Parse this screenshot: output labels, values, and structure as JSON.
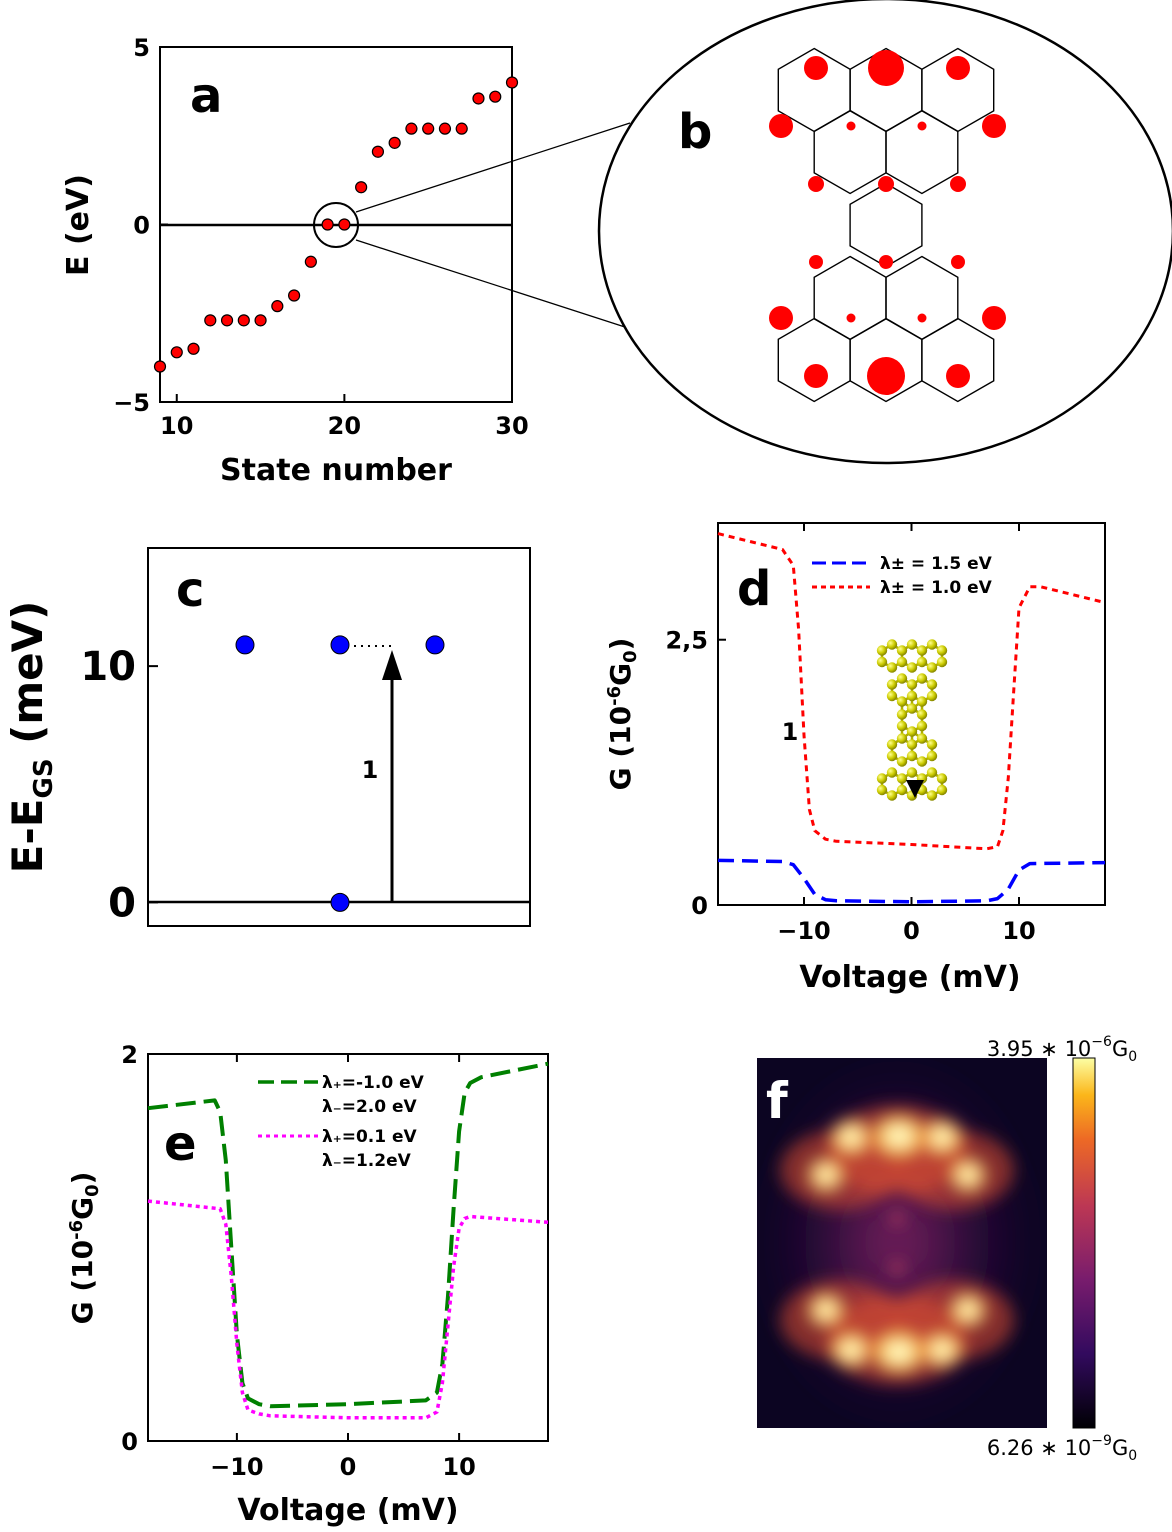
{
  "colors": {
    "red": "#ff0000",
    "blue": "#0000ff",
    "green": "#008000",
    "magenta": "#ff00ff",
    "molecule": "#d4d400",
    "map_bg": "#0c0522"
  },
  "panels": {
    "a": "a",
    "b": "b",
    "c": "c",
    "d": "d",
    "e": "e",
    "f": "f"
  },
  "chart_data": [
    {
      "panel": "a",
      "type": "scatter",
      "xlabel": "State number",
      "ylabel": "E (eV)",
      "xlim": [
        9,
        30
      ],
      "ylim": [
        -5,
        5
      ],
      "xticks": [
        "10",
        "20",
        "30"
      ],
      "yticks": [
        "5",
        "0",
        "−5"
      ],
      "x": [
        9,
        10,
        11,
        12,
        13,
        14,
        15,
        16,
        17,
        18,
        19,
        20,
        21,
        22,
        23,
        24,
        25,
        26,
        27,
        28,
        29,
        30
      ],
      "y": [
        -4.0,
        -3.6,
        -3.5,
        -2.7,
        -2.7,
        -2.7,
        -2.7,
        -2.3,
        -2.0,
        -1.05,
        0.0,
        0.0,
        1.05,
        2.05,
        2.3,
        2.7,
        2.7,
        2.7,
        2.7,
        3.55,
        3.6,
        4.0
      ]
    },
    {
      "panel": "c",
      "type": "scatter",
      "ylabel": "E-E",
      "ylabel_sub": "GS",
      "ylabel_unit": " (meV)",
      "ylim": [
        -1,
        15
      ],
      "yticks": [
        "0",
        "10"
      ],
      "x": [
        -1,
        0,
        1,
        0
      ],
      "y": [
        10.9,
        10.9,
        10.9,
        0
      ],
      "annotation": "1"
    },
    {
      "panel": "d",
      "type": "line",
      "xlabel": "Voltage (mV)",
      "ylabel": "G (10",
      "ylabel_sup": "-6",
      "ylabel_unit": "G",
      "ylabel_sub": "0",
      "ylabel_close": ")",
      "xlim": [
        -18,
        18
      ],
      "ylim": [
        0,
        3.6
      ],
      "xticks": [
        "−10",
        "0",
        "10"
      ],
      "yticks": [
        "0",
        "2,5"
      ],
      "annotation": "1",
      "series": [
        {
          "name": "λ± = 1.5 eV",
          "style": "dashed",
          "color": "blue",
          "x": [
            -18,
            -12,
            -11,
            -10,
            -9,
            -8,
            -7,
            0,
            7,
            8,
            9,
            10,
            11,
            18
          ],
          "y": [
            0.42,
            0.41,
            0.38,
            0.25,
            0.1,
            0.05,
            0.04,
            0.03,
            0.04,
            0.06,
            0.15,
            0.33,
            0.39,
            0.4
          ]
        },
        {
          "name": "λ± = 1.0 eV",
          "style": "dotted",
          "color": "red",
          "x": [
            -18,
            -12,
            -11,
            -10.5,
            -10,
            -9.5,
            -9,
            -8,
            -7,
            0,
            7,
            8,
            8.5,
            9,
            9.5,
            10,
            11,
            12,
            18
          ],
          "y": [
            3.5,
            3.35,
            3.2,
            2.6,
            1.6,
            0.9,
            0.7,
            0.62,
            0.6,
            0.57,
            0.53,
            0.55,
            0.7,
            1.2,
            2.0,
            2.8,
            3.0,
            3.0,
            2.85
          ]
        }
      ]
    },
    {
      "panel": "e",
      "type": "line",
      "xlabel": "Voltage (mV)",
      "ylabel": "G (10",
      "ylabel_sup": "-6",
      "ylabel_unit": "G",
      "ylabel_sub": "0",
      "ylabel_close": ")",
      "xlim": [
        -18,
        18
      ],
      "ylim": [
        0,
        2
      ],
      "xticks": [
        "−10",
        "0",
        "10"
      ],
      "yticks": [
        "0",
        "2"
      ],
      "series": [
        {
          "name": "λ₊=-1.0 eV",
          "name2": "λ₋=2.0 eV",
          "style": "dashed",
          "color": "green",
          "x": [
            -18,
            -12,
            -11.5,
            -11,
            -10.5,
            -10,
            -9.5,
            -9,
            -8,
            -7,
            0,
            7,
            8,
            8.5,
            9,
            9.5,
            10,
            10.5,
            11,
            12,
            18
          ],
          "y": [
            1.72,
            1.76,
            1.7,
            1.45,
            1.0,
            0.55,
            0.3,
            0.22,
            0.19,
            0.18,
            0.19,
            0.21,
            0.25,
            0.4,
            0.75,
            1.2,
            1.6,
            1.8,
            1.85,
            1.88,
            1.95
          ]
        },
        {
          "name": "λ₊=0.1 eV",
          "name2": "λ₋=1.2eV",
          "style": "dotted",
          "color": "magenta",
          "x": [
            -18,
            -11.5,
            -11,
            -10.5,
            -10,
            -9.5,
            -9,
            -8,
            -7,
            0,
            7,
            8,
            8.5,
            9,
            9.5,
            10,
            10.5,
            11,
            18
          ],
          "y": [
            1.24,
            1.2,
            1.12,
            0.85,
            0.5,
            0.25,
            0.16,
            0.14,
            0.13,
            0.12,
            0.12,
            0.15,
            0.3,
            0.6,
            0.9,
            1.1,
            1.15,
            1.16,
            1.13
          ]
        }
      ]
    },
    {
      "panel": "f",
      "type": "heatmap",
      "colorbar_max": "3.95 ∗ 10",
      "colorbar_max_sup": "−6",
      "colorbar_max_unit": "G",
      "colorbar_max_sub": "0",
      "colorbar_min": "6.26 ∗ 10",
      "colorbar_min_sup": "−9",
      "colorbar_min_unit": "G",
      "colorbar_min_sub": "0"
    }
  ]
}
